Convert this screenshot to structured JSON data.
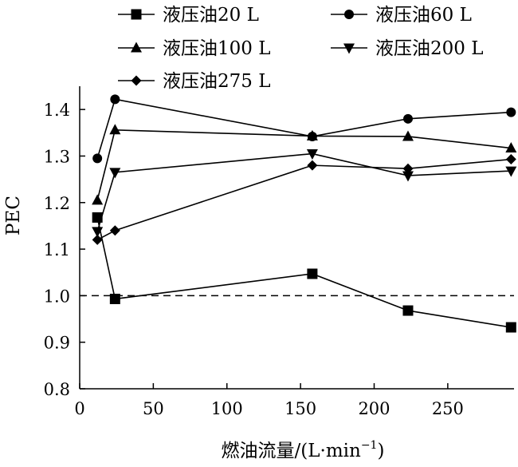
{
  "chart_data": {
    "type": "line",
    "xlabel": "燃油流量/(L·min",
    "xlabel_sup": "−1",
    "xlabel_end": ")",
    "ylabel": "PEC",
    "xlim": [
      0,
      295
    ],
    "ylim": [
      0.8,
      1.45
    ],
    "xticks": [
      0,
      50,
      100,
      150,
      200,
      250
    ],
    "yticks": [
      0.8,
      0.9,
      1.0,
      1.1,
      1.2,
      1.3,
      1.4
    ],
    "ytick_labels": [
      "0.8",
      "0.9",
      "1.0",
      "1.1",
      "1.2",
      "1.3",
      "1.4"
    ],
    "reference_line": {
      "y": 1.0,
      "style": "dashed"
    },
    "legend_position": "top",
    "series": [
      {
        "name": "液压油20 L",
        "marker": "square",
        "points": [
          [
            12,
            1.168
          ],
          [
            24,
            0.993
          ],
          [
            158,
            1.047
          ],
          [
            223,
            0.968
          ],
          [
            293,
            0.932
          ]
        ]
      },
      {
        "name": "液压油60 L",
        "marker": "circle",
        "points": [
          [
            12,
            1.295
          ],
          [
            24,
            1.422
          ],
          [
            158,
            1.342
          ],
          [
            223,
            1.38
          ],
          [
            293,
            1.394
          ]
        ]
      },
      {
        "name": "液压油100 L",
        "marker": "triangle-up",
        "points": [
          [
            12,
            1.205
          ],
          [
            24,
            1.356
          ],
          [
            158,
            1.343
          ],
          [
            223,
            1.342
          ],
          [
            293,
            1.317
          ]
        ]
      },
      {
        "name": "液压油200 L",
        "marker": "triangle-down",
        "points": [
          [
            12,
            1.138
          ],
          [
            24,
            1.265
          ],
          [
            158,
            1.305
          ],
          [
            223,
            1.258
          ],
          [
            293,
            1.268
          ]
        ]
      },
      {
        "name": "液压油275 L",
        "marker": "diamond",
        "points": [
          [
            12,
            1.12
          ],
          [
            24,
            1.14
          ],
          [
            158,
            1.28
          ],
          [
            223,
            1.273
          ],
          [
            293,
            1.293
          ]
        ]
      }
    ]
  }
}
